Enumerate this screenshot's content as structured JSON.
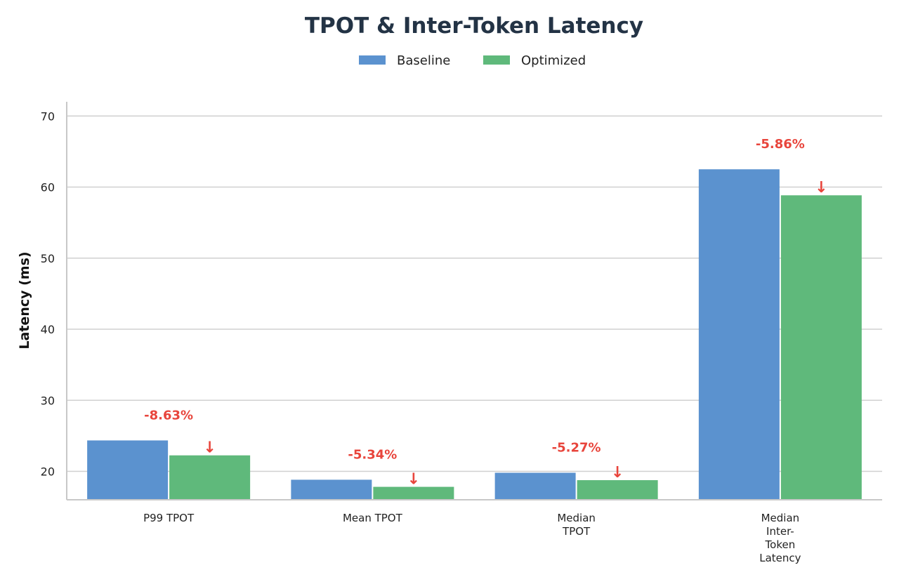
{
  "chart_data": {
    "type": "bar",
    "title": "TPOT & Inter-Token Latency",
    "ylabel": "Latency (ms)",
    "xlabel": "",
    "ylim": [
      16,
      72
    ],
    "yticks": [
      20,
      30,
      40,
      50,
      60,
      70
    ],
    "grid": "horizontal",
    "legend_placement": "top-center",
    "categories": [
      "P99 TPOT",
      "Mean TPOT",
      "Median\nTPOT",
      "Median\nInter-\nToken\nLatency"
    ],
    "series": [
      {
        "name": "Baseline",
        "color": "#5b92cf",
        "values": [
          24.35,
          18.82,
          19.8,
          62.5
        ]
      },
      {
        "name": "Optimized",
        "color": "#5fb97b",
        "values": [
          22.25,
          17.82,
          18.76,
          58.84
        ]
      }
    ],
    "annotations": [
      "-8.63%",
      "-5.34%",
      "-5.27%",
      "-5.86%"
    ],
    "annotation_color": "#e8453c",
    "annotation_icon": "down-arrow-icon"
  }
}
